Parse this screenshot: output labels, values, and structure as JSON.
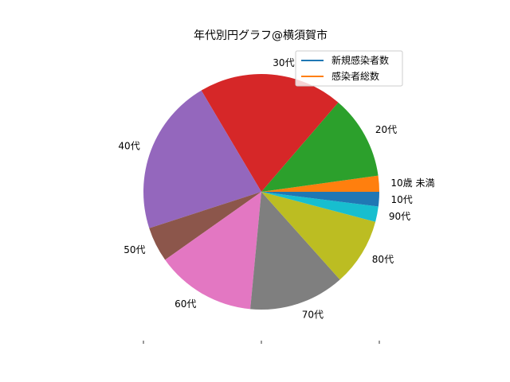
{
  "chart_data": {
    "type": "pie",
    "title": "年代別円グラフ@横須賀市",
    "start_angle_deg": 0,
    "direction": "counterclockwise",
    "slices": [
      {
        "label": "10歳 未満",
        "value": 2.2,
        "color": "#ff7f0e"
      },
      {
        "label": "20代",
        "value": 11.5,
        "color": "#2ca02c"
      },
      {
        "label": "30代",
        "value": 19.8,
        "color": "#d62728"
      },
      {
        "label": "40代",
        "value": 21.5,
        "color": "#9467bd"
      },
      {
        "label": "50代",
        "value": 4.8,
        "color": "#8c564b"
      },
      {
        "label": "60代",
        "value": 13.7,
        "color": "#e377c2"
      },
      {
        "label": "70代",
        "value": 13.1,
        "color": "#7f7f7f"
      },
      {
        "label": "80代",
        "value": 9.3,
        "color": "#bcbd22"
      },
      {
        "label": "90代",
        "value": 2.1,
        "color": "#17becf"
      },
      {
        "label": "10代",
        "value": 2.0,
        "color": "#1f77b4"
      }
    ],
    "legend": {
      "position": "top-right",
      "entries": [
        {
          "label": "新規感染者数",
          "color": "#1f77b4"
        },
        {
          "label": "感染者総数",
          "color": "#ff7f0e"
        }
      ]
    }
  }
}
